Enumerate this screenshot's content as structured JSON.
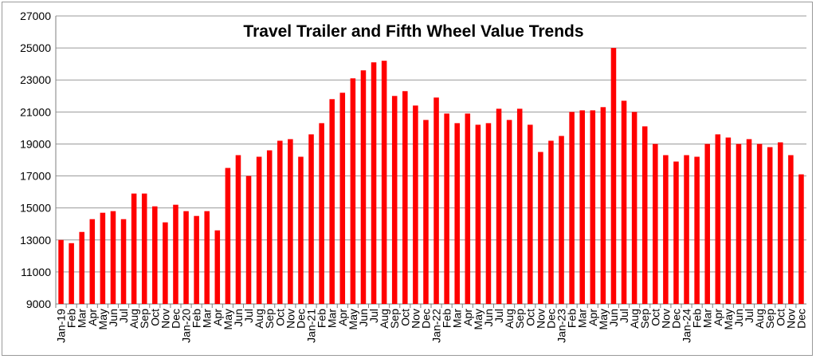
{
  "chart_data": {
    "type": "bar",
    "title": "Travel Trailer and Fifth Wheel Value Trends",
    "xlabel": "",
    "ylabel": "",
    "ylim": [
      9000,
      27000
    ],
    "yticks": [
      9000,
      11000,
      13000,
      15000,
      17000,
      19000,
      21000,
      23000,
      25000,
      27000
    ],
    "grid": "horizontal",
    "legend": "none",
    "bar_color": "#ff0000",
    "categories": [
      "Jan-19",
      "Feb",
      "Mar",
      "Apr",
      "May",
      "Jun",
      "Jul",
      "Aug",
      "Sep",
      "Oct",
      "Nov",
      "Dec",
      "Jan-20",
      "Feb",
      "Mar",
      "Apr",
      "May",
      "Jun",
      "Jul",
      "Aug",
      "Sep",
      "Oct",
      "Nov",
      "Dec",
      "Jan-21",
      "Feb",
      "Mar",
      "Apr",
      "May",
      "Jun",
      "Jul",
      "Aug",
      "Sep",
      "Oct",
      "Nov",
      "Dec",
      "Jan-22",
      "Feb",
      "Mar",
      "Apr",
      "May",
      "Jun",
      "Jul",
      "Aug",
      "Sep",
      "Oct",
      "Nov",
      "Dec",
      "Jan-23",
      "Feb",
      "Mar",
      "Apr",
      "May",
      "Jun",
      "Jul",
      "Aug",
      "Sep",
      "Oct",
      "Nov",
      "Dec",
      "Jan-24",
      "Feb",
      "Mar",
      "Apr",
      "May",
      "Jun",
      "Jul",
      "Aug",
      "Sep",
      "Oct",
      "Nov",
      "Dec"
    ],
    "values": [
      13000,
      12800,
      13500,
      14300,
      14700,
      14800,
      14300,
      15900,
      15900,
      15100,
      14100,
      15200,
      14800,
      14500,
      14800,
      13600,
      17500,
      18300,
      17000,
      18200,
      18600,
      19200,
      19300,
      18200,
      19600,
      20300,
      21800,
      22200,
      23100,
      23600,
      24100,
      24200,
      22000,
      22300,
      21400,
      20500,
      21900,
      20900,
      20300,
      20900,
      20200,
      20300,
      21200,
      20500,
      21200,
      20200,
      18500,
      19200,
      19500,
      21000,
      21100,
      21100,
      21300,
      25000,
      21700,
      21000,
      20100,
      19000,
      18300,
      17900,
      18300,
      18200,
      19000,
      19600,
      19400,
      19000,
      19300,
      19000,
      18800,
      19100,
      18300,
      17100
    ]
  }
}
